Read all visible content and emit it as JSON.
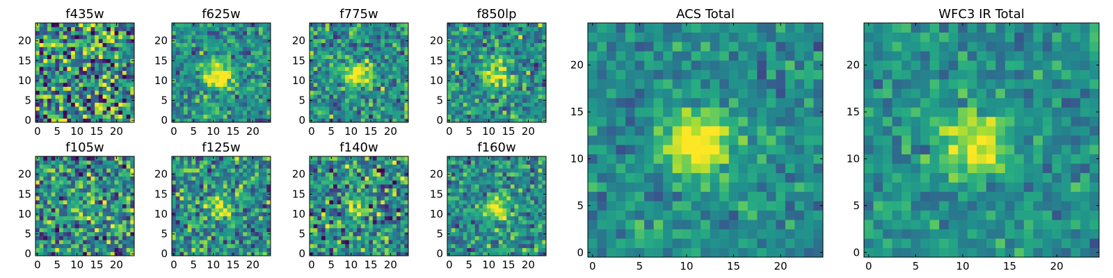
{
  "chart_data": [
    {
      "type": "heatmap",
      "title": "f435w",
      "signal": 0.0,
      "noise": 0.38,
      "seed": 1
    },
    {
      "type": "heatmap",
      "title": "f625w",
      "signal": 0.6,
      "noise": 0.18,
      "seed": 2
    },
    {
      "type": "heatmap",
      "title": "f775w",
      "signal": 0.55,
      "noise": 0.2,
      "seed": 3
    },
    {
      "type": "heatmap",
      "title": "f850lp",
      "signal": 0.5,
      "noise": 0.2,
      "seed": 4
    },
    {
      "type": "heatmap",
      "title": "ACS Total",
      "signal": 0.62,
      "noise": 0.13,
      "seed": 9
    },
    {
      "type": "heatmap",
      "title": "WFC3 IR Total",
      "signal": 0.55,
      "noise": 0.13,
      "seed": 10
    },
    {
      "type": "heatmap",
      "title": "f105w",
      "signal": 0.25,
      "noise": 0.28,
      "seed": 5
    },
    {
      "type": "heatmap",
      "title": "f125w",
      "signal": 0.4,
      "noise": 0.24,
      "seed": 6
    },
    {
      "type": "heatmap",
      "title": "f140w",
      "signal": 0.25,
      "noise": 0.28,
      "seed": 7
    },
    {
      "type": "heatmap",
      "title": "f160w",
      "signal": 0.48,
      "noise": 0.2,
      "seed": 8
    }
  ],
  "grid": {
    "nx": 25,
    "ny": 25,
    "center": [
      11.5,
      11.5
    ],
    "colormap": "viridis"
  },
  "small_axes": {
    "xticks": [
      0,
      5,
      10,
      15,
      20
    ],
    "xtick_labels": [
      "0",
      "5",
      "10",
      "15",
      "20"
    ],
    "yticks": [
      0,
      5,
      10,
      15,
      20
    ],
    "ytick_labels": [
      "0",
      "5",
      "10",
      "15",
      "20"
    ]
  },
  "large_axes": {
    "xticks": [
      0,
      5,
      10,
      15,
      20
    ],
    "xtick_labels": [
      "0",
      "5",
      "10",
      "15",
      "20"
    ],
    "yticks": [
      0,
      5,
      10,
      15,
      20
    ],
    "ytick_labels": [
      "0",
      "5",
      "10",
      "15",
      "20"
    ]
  }
}
